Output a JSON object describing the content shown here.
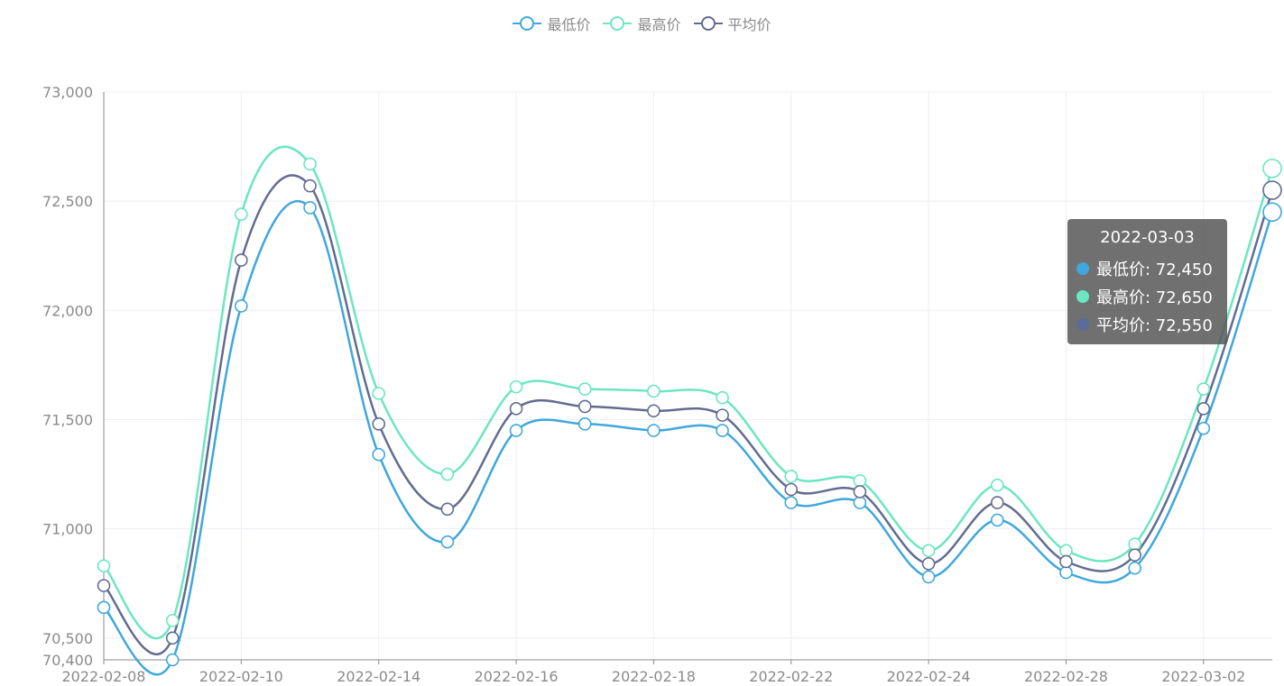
{
  "chart_data": {
    "type": "line",
    "x": [
      "2022-02-08",
      "2022-02-09",
      "2022-02-10",
      "2022-02-11",
      "2022-02-14",
      "2022-02-15",
      "2022-02-16",
      "2022-02-17",
      "2022-02-18",
      "2022-02-21",
      "2022-02-22",
      "2022-02-23",
      "2022-02-24",
      "2022-02-25",
      "2022-02-28",
      "2022-03-01",
      "2022-03-02",
      "2022-03-03"
    ],
    "xtick_labels": [
      "2022-02-08",
      "2022-02-10",
      "2022-02-14",
      "2022-02-16",
      "2022-02-18",
      "2022-02-22",
      "2022-02-24",
      "2022-02-28",
      "2022-03-02"
    ],
    "ylim": [
      70400,
      73000
    ],
    "yticks": [
      {
        "value": 70400,
        "label": "70,400"
      },
      {
        "value": 70500,
        "label": "70,500"
      },
      {
        "value": 71000,
        "label": "71,000"
      },
      {
        "value": 71500,
        "label": "71,500"
      },
      {
        "value": 72000,
        "label": "72,000"
      },
      {
        "value": 72500,
        "label": "72,500"
      },
      {
        "value": 73000,
        "label": "73,000"
      }
    ],
    "grid": true,
    "legend_position": "top-center",
    "series": [
      {
        "name": "最低价",
        "color": "#3fa7dc",
        "values": [
          70640,
          70400,
          72020,
          72470,
          71340,
          70940,
          71450,
          71480,
          71450,
          71450,
          71120,
          71120,
          70780,
          71040,
          70800,
          70820,
          71460,
          72450
        ]
      },
      {
        "name": "最高价",
        "color": "#6be6c1",
        "values": [
          70830,
          70580,
          72440,
          72670,
          71620,
          71250,
          71650,
          71640,
          71630,
          71600,
          71240,
          71220,
          70900,
          71200,
          70900,
          70930,
          71640,
          72650
        ]
      },
      {
        "name": "平均价",
        "color": "#626c91",
        "values": [
          70740,
          70500,
          72230,
          72570,
          71480,
          71090,
          71550,
          71560,
          71540,
          71520,
          71180,
          71170,
          70840,
          71120,
          70850,
          70880,
          71550,
          72550
        ]
      }
    ],
    "highlight_index": 17
  },
  "tooltip": {
    "title": "2022-03-03",
    "rows": [
      {
        "label": "最低价: 72,450",
        "color": "#3fa7dc"
      },
      {
        "label": "最高价: 72,650",
        "color": "#6be6c1"
      },
      {
        "label": "平均价: 72,550",
        "color": "#5b6b9a"
      }
    ]
  }
}
